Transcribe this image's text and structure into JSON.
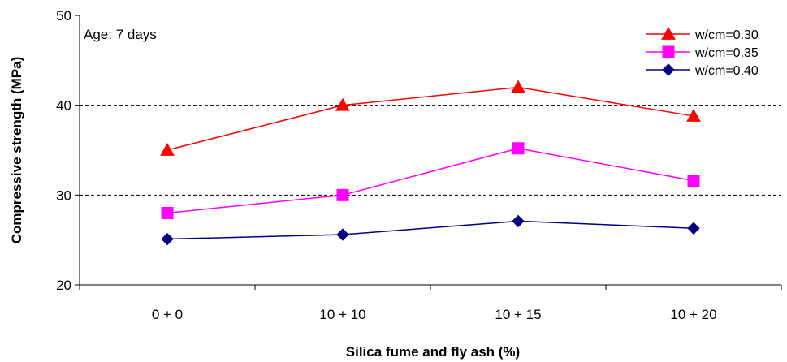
{
  "chart_data": {
    "type": "line",
    "annotation": "Age: 7 days",
    "xlabel": "Silica fume and fly ash (%)",
    "ylabel": "Compressive strength (MPa)",
    "categories": [
      "0 + 0",
      "10 + 10",
      "10 + 15",
      "10 + 20"
    ],
    "ylim": [
      20,
      50
    ],
    "yticks": [
      20,
      30,
      40,
      50
    ],
    "grid_values": [
      30,
      40
    ],
    "legend_position": "top-right",
    "series": [
      {
        "name": "w/cm=0.30",
        "values": [
          35.0,
          40.0,
          42.0,
          38.8
        ],
        "color": "#ff0000",
        "marker": "triangle"
      },
      {
        "name": "w/cm=0.35",
        "values": [
          28.0,
          30.0,
          35.2,
          31.6
        ],
        "color": "#ff00ff",
        "marker": "square"
      },
      {
        "name": "w/cm=0.40",
        "values": [
          25.1,
          25.6,
          27.1,
          26.3
        ],
        "color": "#000080",
        "marker": "diamond"
      }
    ]
  }
}
